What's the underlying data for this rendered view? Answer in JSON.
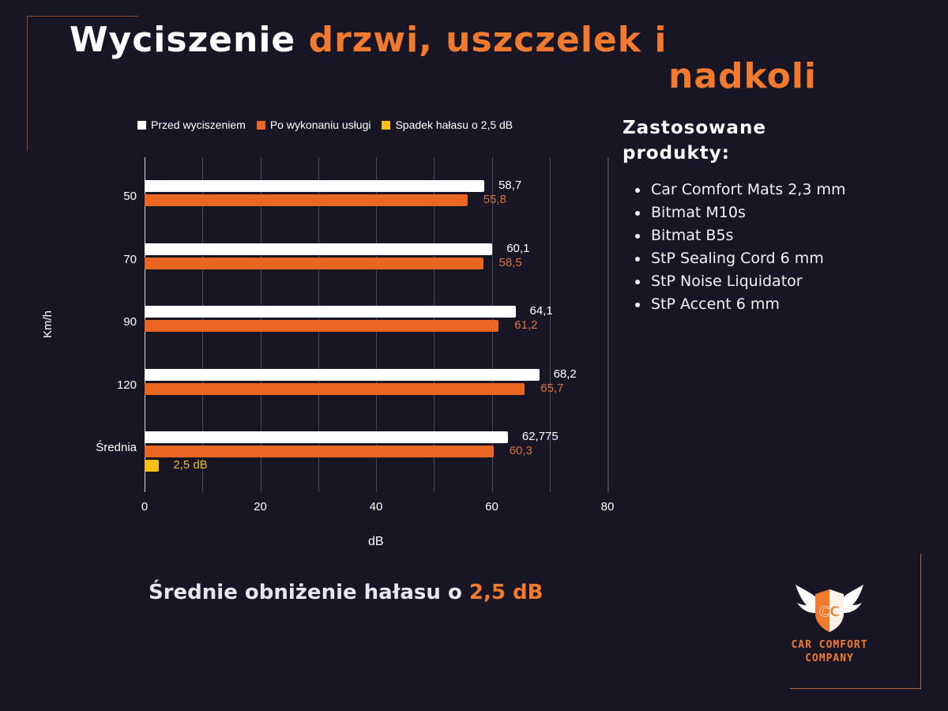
{
  "header": {
    "title_white": "Wyciszenie",
    "title_orange_line1": "drzwi, uszczelek i",
    "title_orange_line2": "nadkoli"
  },
  "legend": [
    {
      "label": "Przed wyciszeniem",
      "color": "#ffffff"
    },
    {
      "label": "Po wykonaniu usługi",
      "color": "#e8661f"
    },
    {
      "label": "Spadek hałasu o 2,5 dB",
      "color": "#f6c114"
    }
  ],
  "chart_data": {
    "type": "bar",
    "orientation": "horizontal",
    "title": "",
    "xlabel": "dB",
    "ylabel": "Km/h",
    "xlim": [
      0,
      80
    ],
    "xticks": [
      "0",
      "20",
      "40",
      "60",
      "80"
    ],
    "grid": true,
    "legend_position": "top",
    "categories": [
      "50",
      "70",
      "90",
      "120",
      "Średnia"
    ],
    "series": [
      {
        "name": "Przed wyciszeniem",
        "color": "#ffffff",
        "values": [
          58.7,
          60.1,
          64.1,
          68.2,
          62.775
        ],
        "labels": [
          "58,7",
          "60,1",
          "64,1",
          "68,2",
          "62,775"
        ]
      },
      {
        "name": "Po wykonaniu usługi",
        "color": "#e8661f",
        "values": [
          55.8,
          58.5,
          61.2,
          65.7,
          60.3
        ],
        "labels": [
          "55,8",
          "58,5",
          "61,2",
          "65,7",
          "60,3"
        ]
      },
      {
        "name": "Spadek hałasu o 2,5 dB",
        "color": "#f6c114",
        "values": [
          null,
          null,
          null,
          null,
          2.5
        ],
        "labels": [
          "",
          "",
          "",
          "",
          "2,5 dB"
        ]
      }
    ]
  },
  "products": {
    "title_line1": "Zastosowane",
    "title_line2": "produkty:",
    "items": [
      "Car Comfort Mats 2,3 mm",
      "Bitmat M10s",
      "Bitmat B5s",
      "StP Sealing Cord 6 mm",
      "StP Noise Liquidator",
      "StP Accent 6 mm"
    ]
  },
  "summary": {
    "text": "Średnie obniżenie hałasu o",
    "highlight": "2,5 dB"
  },
  "logo": {
    "monogram": "CC",
    "line1": "CAR COMFORT",
    "line2": "COMPANY"
  },
  "colors": {
    "background": "#181524",
    "accent": "#f27a2e",
    "bar_before": "#ffffff",
    "bar_after": "#e8661f",
    "bar_drop": "#f6c114"
  }
}
